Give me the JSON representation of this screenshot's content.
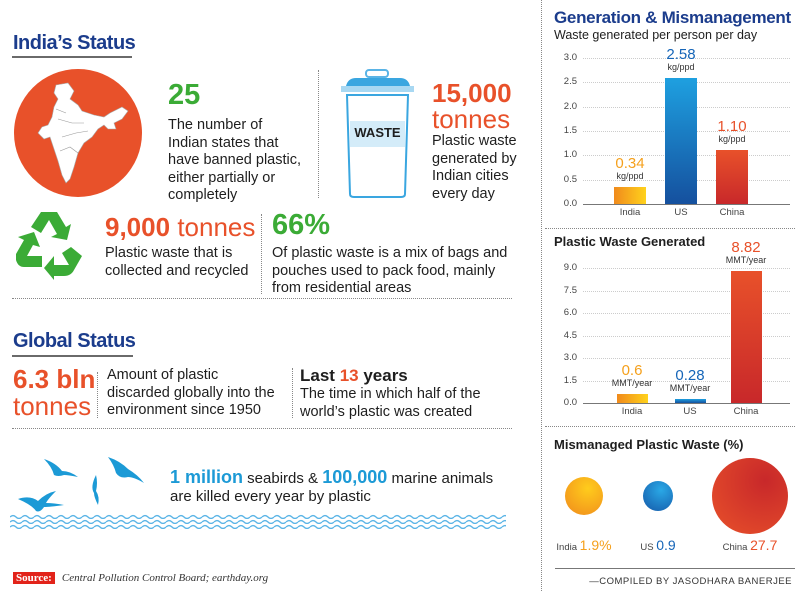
{
  "india_status": {
    "heading": "India’s Status",
    "states": {
      "value": "25",
      "text": [
        "The number of",
        "Indian states that",
        "have banned plastic,",
        "either partially or",
        "completely"
      ]
    },
    "generated": {
      "value": "15,000",
      "unit": "tonnes",
      "bin_label": "WASTE",
      "text": [
        "Plastic waste",
        "generated by",
        "Indian cities",
        "every day"
      ]
    },
    "recycled": {
      "value": "9,000",
      "unit": "tonnes",
      "text": [
        "Plastic waste that is",
        "collected and recycled"
      ]
    },
    "bags": {
      "value": "66%",
      "text": [
        "Of plastic waste is a mix of bags and",
        "pouches used to pack food, mainly",
        "from residential areas"
      ]
    }
  },
  "global_status": {
    "heading": "Global Status",
    "discarded": {
      "value": "6.3 bln",
      "unit": "tonnes",
      "text": [
        "Amount of plastic",
        "discarded globally into the",
        "environment since 1950"
      ]
    },
    "years": {
      "prefix": "Last ",
      "value": "13",
      "suffix": " years",
      "text": [
        "The time in which half of the",
        "world’s plastic was created"
      ]
    },
    "marine": {
      "v1": "1 million",
      "t1": " seabirds & ",
      "v2": "100,000",
      "t2": " marine animals",
      "line2": "are killed every year by plastic"
    }
  },
  "source": {
    "label": "Source:",
    "text": "Central Pollution Control Board; earthday.org"
  },
  "right_heading": "Generation & Mismanagement",
  "credit": "—COMPILED BY JASODHARA BANERJEE",
  "colors": {
    "navy": "#1b3c8c",
    "orange": "#e8512a",
    "green": "#3bab36",
    "blue": "#1c9ad6",
    "india": "#f5a01c",
    "us": "#1565b8",
    "china": "#e0402a"
  },
  "chart_data": [
    {
      "type": "bar",
      "title": "Waste generated per person per day",
      "categories": [
        "India",
        "US",
        "China"
      ],
      "values": [
        0.34,
        2.58,
        1.1
      ],
      "value_labels": [
        "0.34",
        "2.58",
        "1.10"
      ],
      "unit": "kg/ppd",
      "ylim": [
        0,
        3.0
      ],
      "yticks": [
        "0.0",
        "0.5",
        "1.0",
        "1.5",
        "2.0",
        "2.5",
        "3.0"
      ],
      "grid": true
    },
    {
      "type": "bar",
      "title": "Plastic Waste Generated",
      "categories": [
        "India",
        "US",
        "China"
      ],
      "values": [
        0.6,
        0.28,
        8.82
      ],
      "value_labels": [
        "0.6",
        "0.28",
        "8.82"
      ],
      "unit": "MMT/year",
      "ylim": [
        0,
        9.0
      ],
      "yticks": [
        "0.0",
        "1.5",
        "3.0",
        "4.5",
        "6.0",
        "7.5",
        "9.0"
      ],
      "grid": true
    },
    {
      "type": "bubble",
      "title": "Mismanaged Plastic Waste (%)",
      "categories": [
        "India",
        "US",
        "China"
      ],
      "values": [
        1.9,
        0.9,
        27.7
      ],
      "value_labels": [
        "1.9%",
        "0.9",
        "27.7"
      ]
    }
  ]
}
